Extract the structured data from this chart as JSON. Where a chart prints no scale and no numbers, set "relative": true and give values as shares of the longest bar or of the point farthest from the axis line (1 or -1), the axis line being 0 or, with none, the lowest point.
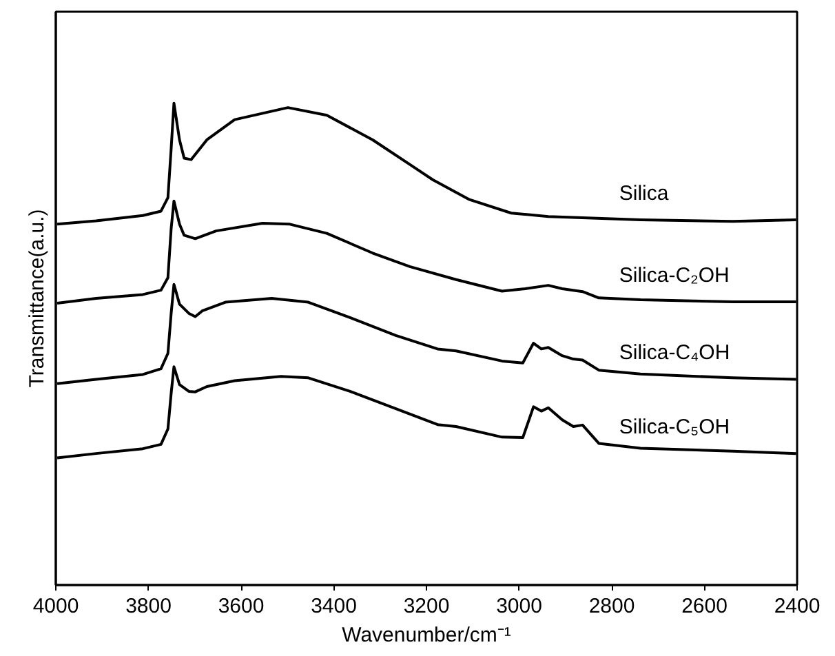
{
  "chart_data": {
    "type": "line",
    "relative": true,
    "xlabel": "Wavenumber/cm⁻¹",
    "ylabel": "Transmittance(a.u.)",
    "xlim": [
      4000,
      2400
    ],
    "xticks": [
      4000,
      3800,
      3600,
      3400,
      3200,
      3000,
      2800,
      2600,
      2400
    ],
    "tick_labels": "x",
    "grid": false,
    "marker": "none",
    "line_style": "solid",
    "x": [
      3997,
      3913,
      3812,
      3773,
      3758,
      3751,
      3745,
      3733,
      3723,
      3708,
      3674,
      3614,
      3499,
      3415,
      3316,
      3236,
      3186,
      3107,
      3017,
      2937,
      2738,
      2539,
      2402
    ],
    "series": [
      {
        "name": "Silica",
        "color": "#000000",
        "values": [
          0.749,
          0.756,
          0.767,
          0.776,
          0.804,
          0.906,
          1.0,
          0.924,
          0.886,
          0.883,
          0.924,
          0.966,
          0.991,
          0.975,
          0.924,
          0.873,
          0.841,
          0.8,
          0.772,
          0.765,
          0.758,
          0.755,
          0.758
        ]
      },
      {
        "name": "Silica-C₂OH",
        "color": "#000000",
        "x": [
          3997,
          3913,
          3812,
          3773,
          3758,
          3751,
          3745,
          3733,
          3723,
          3699,
          3654,
          3554,
          3495,
          3415,
          3316,
          3236,
          3136,
          3037,
          2987,
          2937,
          2907,
          2863,
          2828,
          2738,
          2539,
          2402
        ],
        "values": [
          0.585,
          0.595,
          0.603,
          0.612,
          0.638,
          0.74,
          0.797,
          0.749,
          0.726,
          0.719,
          0.735,
          0.751,
          0.749,
          0.73,
          0.689,
          0.661,
          0.634,
          0.61,
          0.615,
          0.622,
          0.615,
          0.609,
          0.596,
          0.592,
          0.588,
          0.588
        ]
      },
      {
        "name": "Silica-C₄OH",
        "color": "#000000",
        "x": [
          3997,
          3913,
          3812,
          3773,
          3758,
          3751,
          3745,
          3733,
          3713,
          3699,
          3684,
          3634,
          3534,
          3455,
          3365,
          3266,
          3176,
          3136,
          3037,
          2992,
          2969,
          2952,
          2937,
          2907,
          2883,
          2863,
          2828,
          2738,
          2539,
          2402
        ],
        "values": [
          0.418,
          0.427,
          0.437,
          0.449,
          0.481,
          0.564,
          0.624,
          0.583,
          0.564,
          0.557,
          0.569,
          0.587,
          0.595,
          0.587,
          0.555,
          0.518,
          0.49,
          0.486,
          0.465,
          0.461,
          0.502,
          0.49,
          0.493,
          0.476,
          0.469,
          0.467,
          0.446,
          0.438,
          0.43,
          0.427
        ]
      },
      {
        "name": "Silica-C₅OH",
        "color": "#000000",
        "x": [
          3997,
          3913,
          3812,
          3773,
          3758,
          3751,
          3745,
          3733,
          3713,
          3699,
          3674,
          3614,
          3514,
          3455,
          3365,
          3266,
          3176,
          3136,
          3037,
          2992,
          2969,
          2952,
          2937,
          2907,
          2883,
          2863,
          2828,
          2738,
          2539,
          2402
        ],
        "values": [
          0.264,
          0.273,
          0.283,
          0.292,
          0.324,
          0.398,
          0.453,
          0.416,
          0.402,
          0.401,
          0.412,
          0.424,
          0.433,
          0.43,
          0.402,
          0.366,
          0.333,
          0.329,
          0.307,
          0.306,
          0.37,
          0.361,
          0.368,
          0.343,
          0.329,
          0.332,
          0.294,
          0.284,
          0.278,
          0.273
        ]
      }
    ]
  }
}
